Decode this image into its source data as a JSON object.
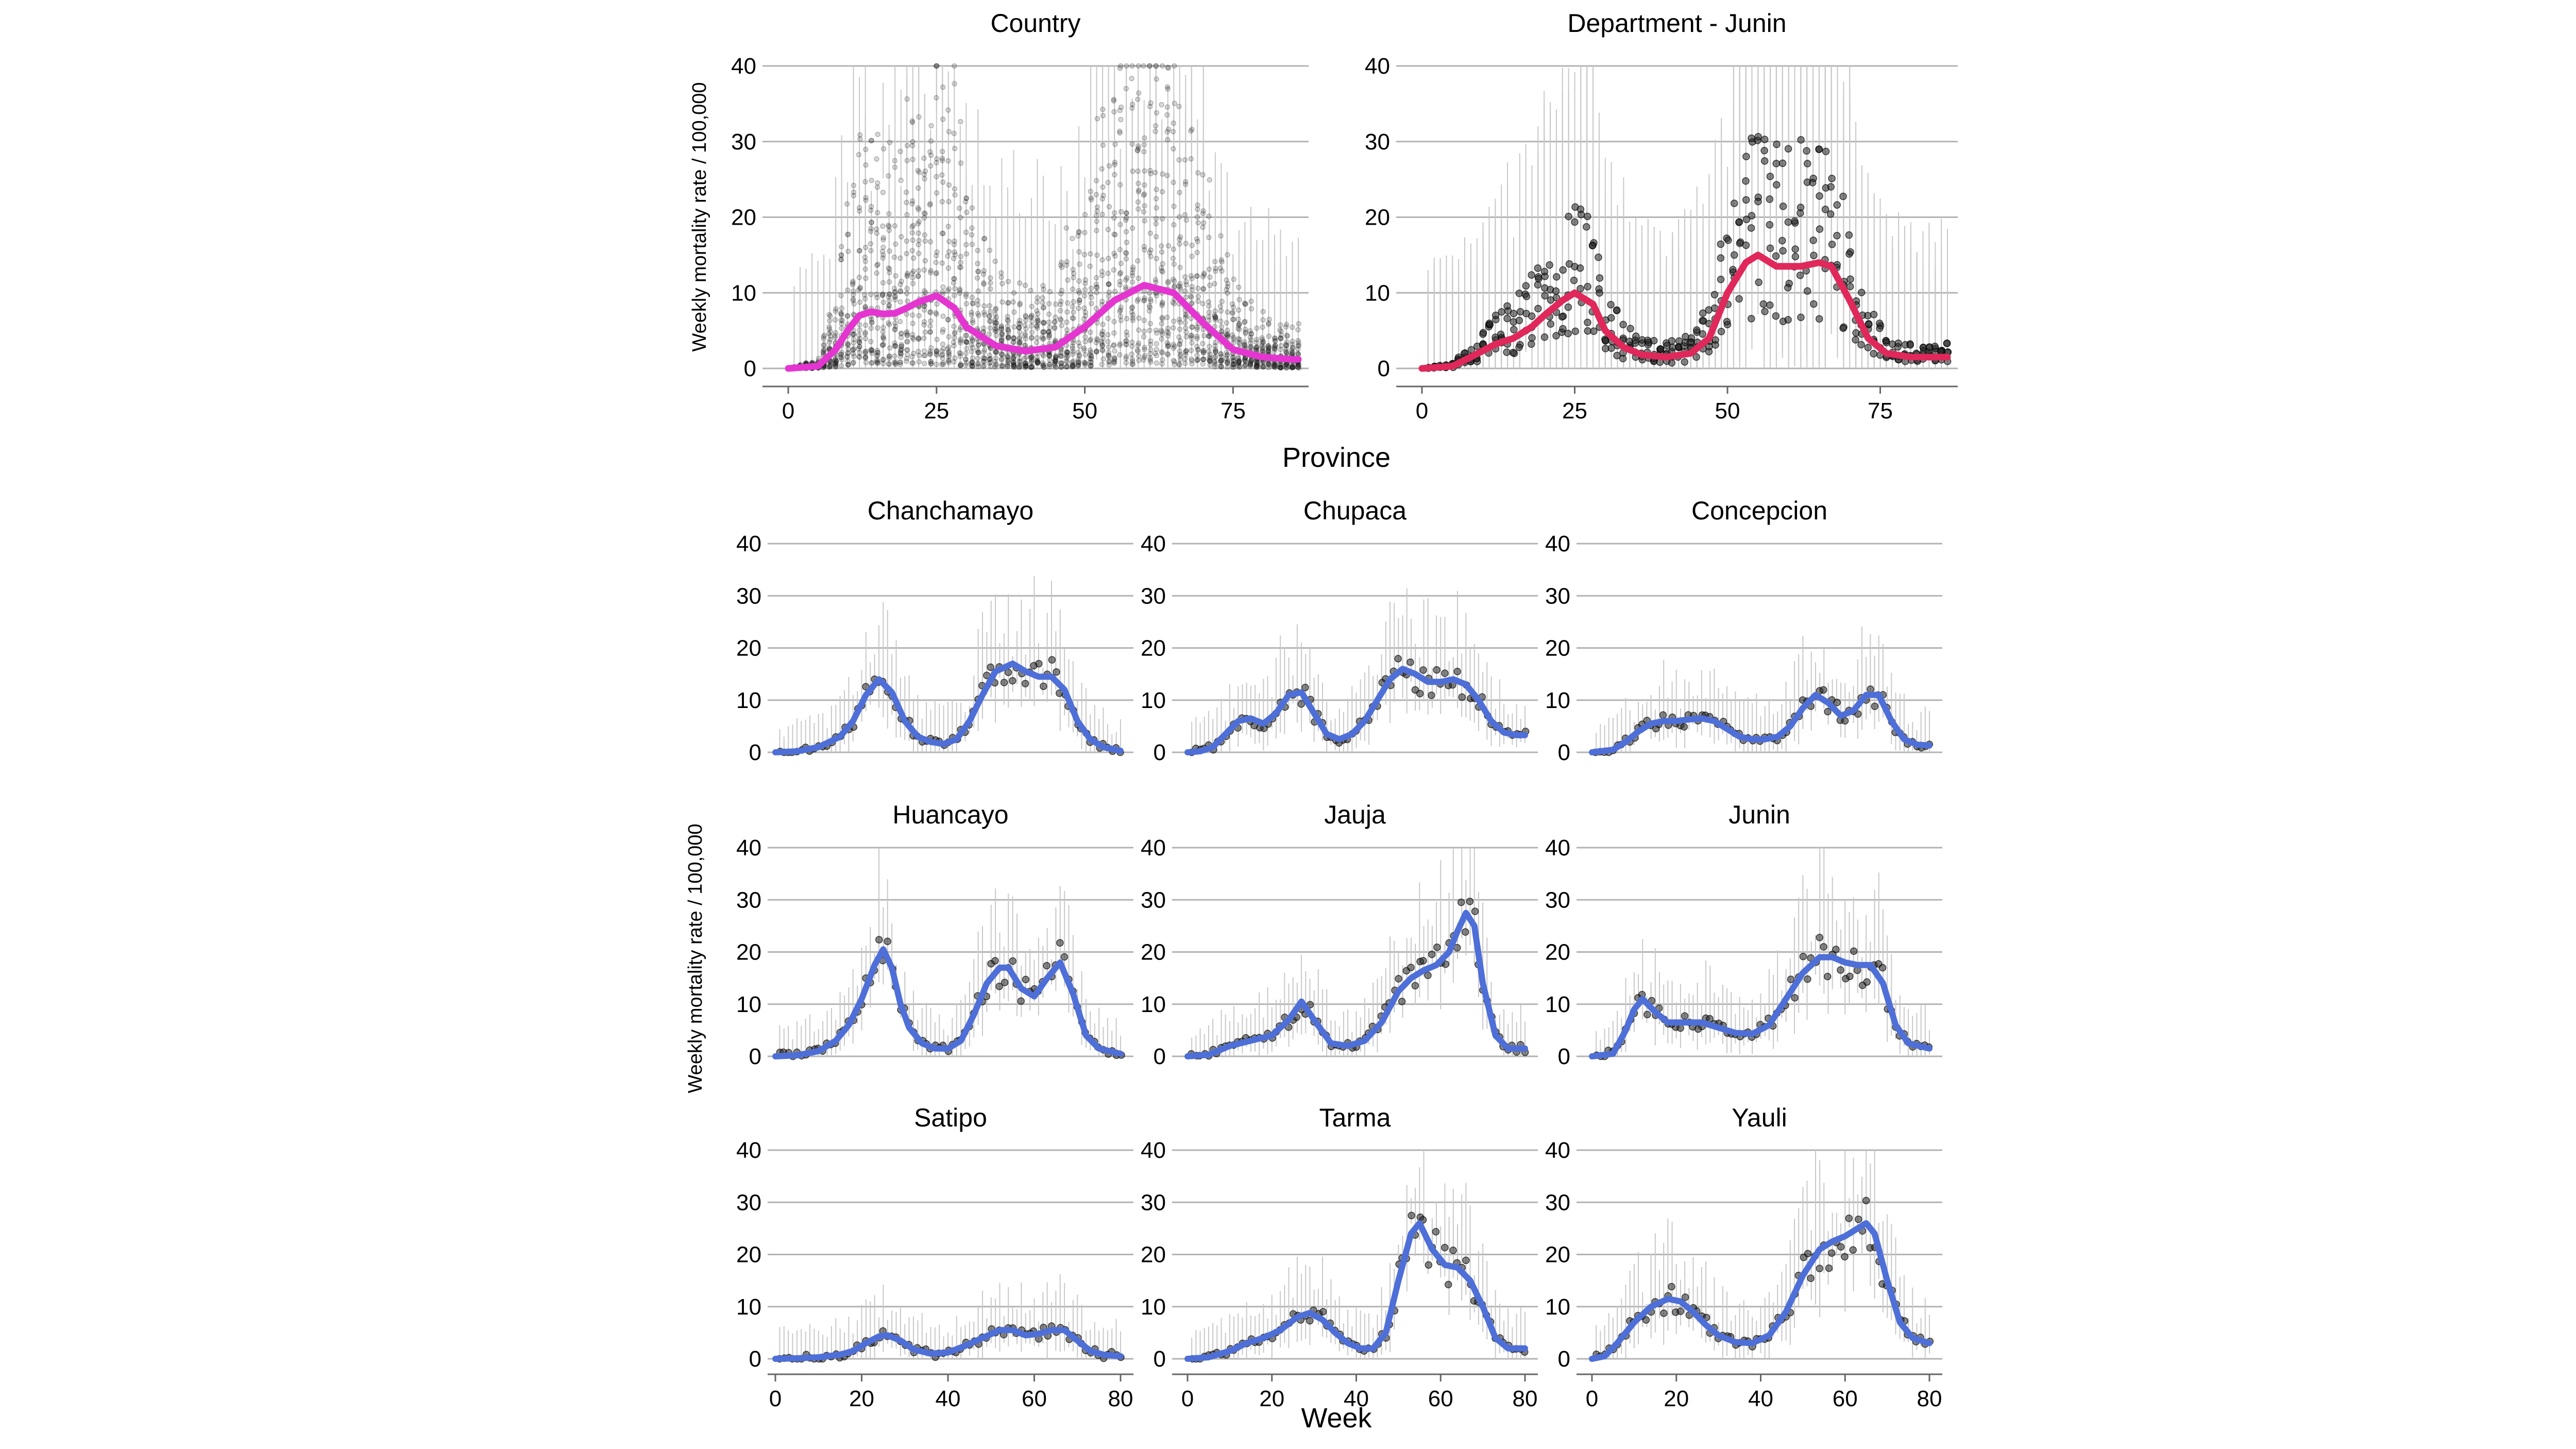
{
  "section_label": "Province",
  "y_axis_label": "Weekly mortality rate / 100,000",
  "x_axis_label": "Week",
  "colors": {
    "country": "#E535D0",
    "department": "#E0285A",
    "province": "#4E6FD8",
    "points": "#222222",
    "bars": "#c8c8c8",
    "grid": "#b3b3b3"
  },
  "chart_data": [
    {
      "title": "Country",
      "type": "line",
      "color": "#E535D0",
      "xlim": [
        0,
        86
      ],
      "ylim": [
        0,
        40
      ],
      "xticks": [
        0,
        25,
        50,
        75
      ],
      "yticks": [
        0,
        10,
        20,
        30,
        40
      ],
      "x": [
        0,
        5,
        8,
        10,
        12,
        14,
        16,
        18,
        20,
        22,
        25,
        28,
        30,
        35,
        40,
        45,
        50,
        55,
        60,
        65,
        70,
        75,
        80,
        85
      ],
      "y": [
        0,
        0.3,
        2.5,
        5,
        7,
        7.5,
        7.2,
        7.3,
        8,
        8.8,
        9.6,
        8,
        5.5,
        3,
        2.3,
        2.8,
        5.5,
        9,
        11,
        10,
        6,
        2.5,
        1.5,
        1.2
      ]
    },
    {
      "title": "Department - Junin",
      "type": "line",
      "color": "#E0285A",
      "xlim": [
        0,
        86
      ],
      "ylim": [
        0,
        40
      ],
      "xticks": [
        0,
        25,
        50,
        75
      ],
      "yticks": [
        0,
        10,
        20,
        30,
        40
      ],
      "x": [
        0,
        5,
        8,
        12,
        15,
        18,
        20,
        23,
        25,
        28,
        30,
        33,
        36,
        40,
        44,
        47,
        50,
        53,
        55,
        58,
        62,
        65,
        67,
        70,
        73,
        76,
        80,
        85
      ],
      "y": [
        0,
        0.3,
        1.5,
        3.2,
        4,
        5.5,
        7,
        9,
        10,
        8.5,
        5,
        2.8,
        1.8,
        1.5,
        2,
        4,
        10,
        14,
        15,
        13.5,
        13.5,
        14,
        13.5,
        9,
        4,
        2,
        1.5,
        1.5
      ]
    },
    {
      "title": "Chanchamayo",
      "type": "line",
      "color": "#4E6FD8",
      "xlim": [
        0,
        80
      ],
      "ylim": [
        0,
        40
      ],
      "xticks": [],
      "yticks": [
        0,
        10,
        20,
        30,
        40
      ],
      "x": [
        0,
        5,
        10,
        15,
        18,
        21,
        24,
        27,
        30,
        33,
        36,
        39,
        42,
        45,
        48,
        51,
        55,
        58,
        61,
        64,
        67,
        70,
        73,
        76,
        80
      ],
      "y": [
        0,
        0.2,
        1,
        3,
        6,
        11,
        14,
        11.5,
        6,
        3,
        2,
        1.6,
        2.5,
        6,
        11,
        15.5,
        17,
        15.5,
        14.5,
        14.5,
        12,
        6,
        2.5,
        1,
        0.3
      ]
    },
    {
      "title": "Chupaca",
      "type": "line",
      "color": "#4E6FD8",
      "xlim": [
        0,
        80
      ],
      "ylim": [
        0,
        40
      ],
      "xticks": [],
      "yticks": [
        0,
        10,
        20,
        30,
        40
      ],
      "x": [
        0,
        3,
        6,
        9,
        12,
        15,
        18,
        21,
        24,
        27,
        30,
        33,
        36,
        39,
        42,
        45,
        48,
        51,
        54,
        57,
        60,
        63,
        66,
        69,
        72,
        75,
        78,
        80
      ],
      "y": [
        0,
        0.2,
        1,
        3.5,
        6,
        6.5,
        5.5,
        7.5,
        11,
        11.5,
        7.5,
        3.5,
        2.5,
        3.5,
        6,
        10,
        14,
        16,
        15,
        13.5,
        13.5,
        14,
        13,
        10,
        6,
        3.8,
        3.3,
        3.3
      ]
    },
    {
      "title": "Concepcion",
      "type": "line",
      "color": "#4E6FD8",
      "xlim": [
        0,
        80
      ],
      "ylim": [
        0,
        40
      ],
      "xticks": [],
      "yticks": [
        0,
        10,
        20,
        30,
        40
      ],
      "x": [
        0,
        5,
        8,
        11,
        14,
        17,
        20,
        23,
        26,
        29,
        32,
        35,
        38,
        41,
        44,
        47,
        50,
        53,
        56,
        59,
        62,
        65,
        68,
        71,
        74,
        77,
        80
      ],
      "y": [
        0,
        0.5,
        2,
        4,
        5.5,
        6,
        6,
        6.3,
        6.5,
        6,
        4.5,
        3,
        2.5,
        2.5,
        3,
        5,
        8.5,
        11,
        9.5,
        7,
        8,
        11,
        11,
        6,
        2.5,
        1.5,
        1.3
      ]
    },
    {
      "title": "Huancayo",
      "type": "line",
      "color": "#4E6FD8",
      "xlim": [
        0,
        80
      ],
      "ylim": [
        0,
        40
      ],
      "xticks": [],
      "yticks": [
        0,
        10,
        20,
        30,
        40
      ],
      "x": [
        0,
        5,
        10,
        14,
        17,
        20,
        23,
        25,
        27,
        29,
        31,
        34,
        37,
        40,
        43,
        46,
        49,
        52,
        54,
        57,
        60,
        63,
        66,
        69,
        72,
        75,
        80
      ],
      "y": [
        0,
        0.2,
        1,
        3,
        6,
        11,
        17.5,
        20.5,
        17,
        10,
        5.5,
        2.5,
        1.5,
        1.5,
        3,
        8,
        14,
        17,
        17,
        13,
        11.5,
        15,
        18,
        12,
        4,
        1.5,
        0.5
      ]
    },
    {
      "title": "Jauja",
      "type": "line",
      "color": "#4E6FD8",
      "xlim": [
        0,
        80
      ],
      "ylim": [
        0,
        40
      ],
      "xticks": [],
      "yticks": [
        0,
        10,
        20,
        30,
        40
      ],
      "x": [
        0,
        5,
        10,
        15,
        20,
        24,
        27,
        30,
        34,
        38,
        42,
        46,
        50,
        53,
        56,
        59,
        62,
        64,
        66,
        68,
        70,
        73,
        76,
        80
      ],
      "y": [
        0,
        0.3,
        2,
        3,
        4,
        7,
        10.5,
        7,
        2.5,
        2,
        3,
        6.5,
        12.5,
        15,
        16.5,
        17.5,
        20,
        24,
        27.5,
        25,
        14,
        4,
        1.5,
        1.5
      ]
    },
    {
      "title": "Junin",
      "type": "line",
      "color": "#4E6FD8",
      "xlim": [
        0,
        80
      ],
      "ylim": [
        0,
        40
      ],
      "xticks": [],
      "yticks": [
        0,
        10,
        20,
        30,
        40
      ],
      "x": [
        0,
        5,
        8,
        10,
        12,
        15,
        18,
        22,
        26,
        30,
        34,
        38,
        42,
        46,
        50,
        54,
        57,
        60,
        63,
        66,
        69,
        72,
        75,
        80
      ],
      "y": [
        0,
        0.5,
        5,
        9,
        11,
        8.5,
        6.5,
        6.5,
        6.5,
        5.5,
        4.5,
        4.3,
        6,
        11,
        16,
        19,
        19,
        18,
        17.5,
        17.5,
        14,
        6,
        2.5,
        1.5
      ]
    },
    {
      "title": "Satipo",
      "type": "line",
      "color": "#4E6FD8",
      "xlim": [
        0,
        80
      ],
      "ylim": [
        0,
        40
      ],
      "xticks": [
        0,
        20,
        40,
        60,
        80
      ],
      "yticks": [
        0,
        10,
        20,
        30,
        40
      ],
      "x": [
        0,
        5,
        10,
        15,
        18,
        21,
        24,
        26,
        29,
        32,
        36,
        40,
        44,
        48,
        52,
        55,
        58,
        61,
        64,
        67,
        70,
        73,
        76,
        80
      ],
      "y": [
        0,
        0.1,
        0.3,
        0.8,
        1.5,
        3,
        4.3,
        4.5,
        3.5,
        1.8,
        1,
        1.2,
        2.5,
        4,
        5.5,
        5.5,
        4.5,
        4.8,
        5.5,
        5.5,
        3.5,
        1.5,
        0.8,
        0.5
      ]
    },
    {
      "title": "Tarma",
      "type": "line",
      "color": "#4E6FD8",
      "xlim": [
        0,
        80
      ],
      "ylim": [
        0,
        40
      ],
      "xticks": [
        0,
        20,
        40,
        60,
        80
      ],
      "yticks": [
        0,
        10,
        20,
        30,
        40
      ],
      "x": [
        0,
        5,
        10,
        14,
        18,
        22,
        26,
        29,
        32,
        35,
        38,
        41,
        44,
        47,
        50,
        53,
        55,
        58,
        61,
        64,
        67,
        70,
        73,
        76,
        80
      ],
      "y": [
        0,
        0.3,
        1.5,
        3,
        4,
        5.5,
        8,
        8.8,
        7.5,
        5,
        3,
        2,
        2,
        5,
        15,
        24,
        26,
        21,
        18,
        17.5,
        15,
        10,
        4,
        2,
        2
      ]
    },
    {
      "title": "Yauli",
      "type": "line",
      "color": "#4E6FD8",
      "xlim": [
        0,
        80
      ],
      "ylim": [
        0,
        40
      ],
      "xticks": [
        0,
        20,
        40,
        60,
        80
      ],
      "yticks": [
        0,
        10,
        20,
        30,
        40
      ],
      "x": [
        0,
        3,
        6,
        10,
        14,
        18,
        21,
        24,
        27,
        30,
        34,
        38,
        42,
        46,
        50,
        54,
        57,
        60,
        63,
        65,
        67,
        70,
        73,
        76,
        80
      ],
      "y": [
        0,
        0.5,
        3,
        7,
        10,
        11.5,
        11,
        9,
        6.5,
        4.5,
        3.2,
        3,
        4.5,
        9,
        16,
        21,
        22.5,
        23.5,
        25,
        26,
        24,
        15,
        7,
        4,
        3
      ]
    }
  ]
}
